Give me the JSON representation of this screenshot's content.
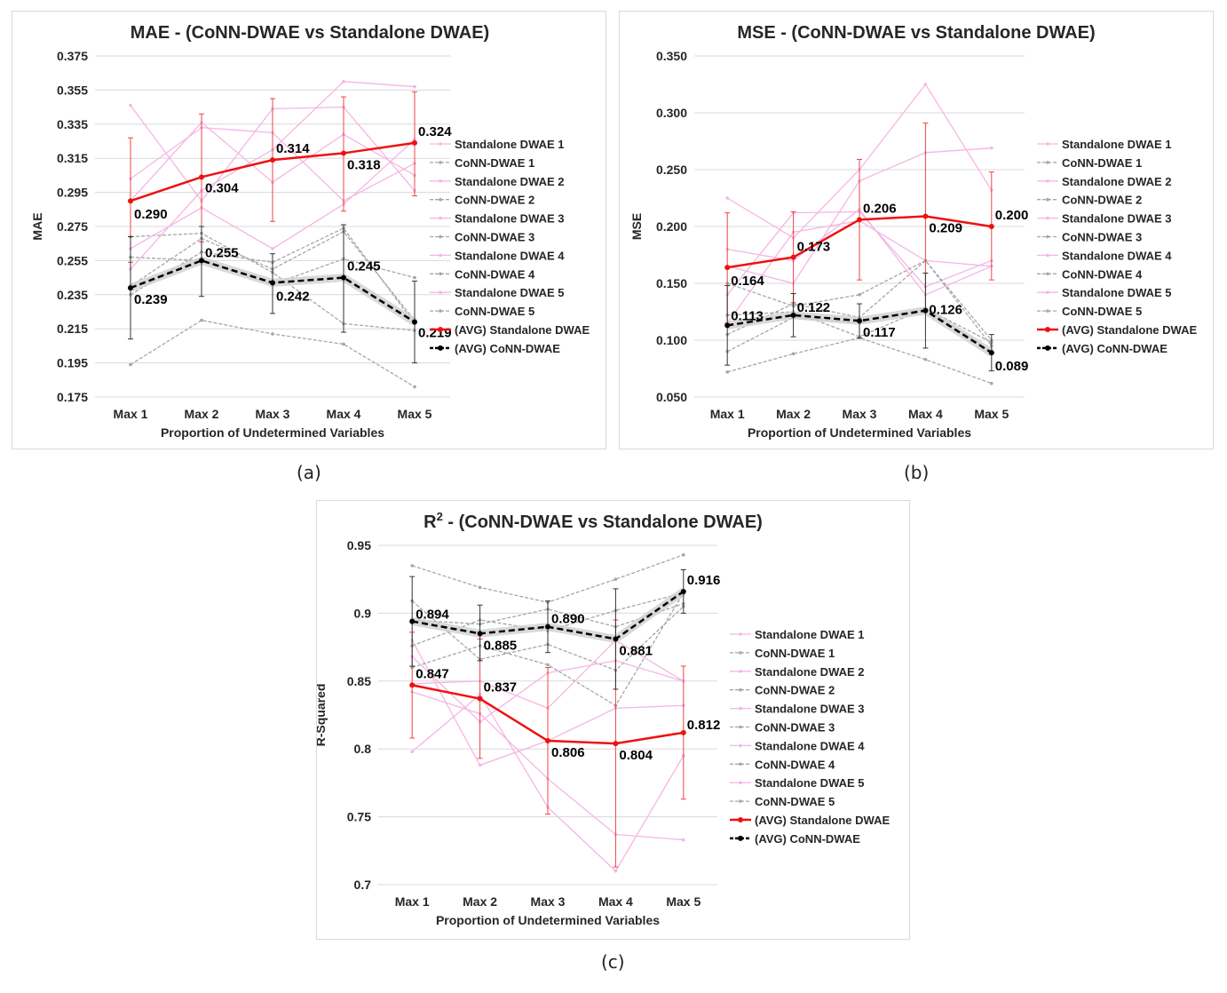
{
  "chart_data": [
    {
      "type": "line",
      "caption": "(a)",
      "title": "MAE - (CoNN-DWAE vs Standalone DWAE)",
      "xlabel": "Proportion of Undetermined Variables",
      "ylabel": "MAE",
      "categories": [
        "Max 1",
        "Max 2",
        "Max 3",
        "Max 4",
        "Max 5"
      ],
      "ylim": [
        0.175,
        0.375
      ],
      "yticks": [
        0.175,
        0.195,
        0.215,
        0.235,
        0.255,
        0.275,
        0.295,
        0.315,
        0.335,
        0.355,
        0.375
      ],
      "ytick_labels": [
        "0.175",
        "0.195",
        "0.215",
        "0.235",
        "0.255",
        "0.275",
        "0.295",
        "0.315",
        "0.335",
        "0.355",
        "0.375"
      ],
      "series": [
        {
          "name": "Standalone DWAE 1",
          "kind": "standalone",
          "values": [
            0.346,
            0.29,
            0.344,
            0.345,
            0.296
          ]
        },
        {
          "name": "CoNN-DWAE 1",
          "kind": "conn",
          "values": [
            0.24,
            0.268,
            0.25,
            0.272,
            0.22
          ]
        },
        {
          "name": "Standalone DWAE 2",
          "kind": "standalone",
          "values": [
            0.303,
            0.333,
            0.33,
            0.29,
            0.312
          ]
        },
        {
          "name": "CoNN-DWAE 2",
          "kind": "conn",
          "values": [
            0.257,
            0.255,
            0.241,
            0.256,
            0.245
          ]
        },
        {
          "name": "Standalone DWAE 3",
          "kind": "standalone",
          "values": [
            0.29,
            0.336,
            0.301,
            0.329,
            0.305
          ]
        },
        {
          "name": "CoNN-DWAE 3",
          "kind": "conn",
          "values": [
            0.194,
            0.22,
            0.212,
            0.206,
            0.181
          ]
        },
        {
          "name": "Standalone DWAE 4",
          "kind": "standalone",
          "values": [
            0.25,
            0.296,
            0.32,
            0.36,
            0.357
          ]
        },
        {
          "name": "CoNN-DWAE 4",
          "kind": "conn",
          "values": [
            0.269,
            0.271,
            0.248,
            0.218,
            0.214
          ]
        },
        {
          "name": "Standalone DWAE 5",
          "kind": "standalone",
          "values": [
            0.262,
            0.286,
            0.262,
            0.288,
            0.326
          ]
        },
        {
          "name": "CoNN-DWAE 5",
          "kind": "conn",
          "values": [
            0.235,
            0.26,
            0.254,
            0.274,
            0.218
          ]
        },
        {
          "name": "(AVG) Standalone DWAE",
          "kind": "avg-standalone",
          "values": [
            0.29,
            0.304,
            0.314,
            0.318,
            0.324
          ],
          "labels": [
            "0.290",
            "0.304",
            "0.314",
            "0.318",
            "0.324"
          ],
          "err_low": [
            0.254,
            0.266,
            0.278,
            0.284,
            0.293
          ],
          "err_high": [
            0.327,
            0.341,
            0.35,
            0.351,
            0.354
          ]
        },
        {
          "name": "(AVG) CoNN-DWAE",
          "kind": "avg-conn",
          "values": [
            0.239,
            0.255,
            0.242,
            0.245,
            0.219
          ],
          "labels": [
            "0.239",
            "0.255",
            "0.242",
            "0.245",
            "0.219"
          ],
          "err_low": [
            0.209,
            0.234,
            0.224,
            0.213,
            0.195
          ],
          "err_high": [
            0.269,
            0.275,
            0.259,
            0.276,
            0.243
          ]
        }
      ]
    },
    {
      "type": "line",
      "caption": "(b)",
      "title": "MSE - (CoNN-DWAE vs Standalone DWAE)",
      "xlabel": "Proportion of Undetermined Variables",
      "ylabel": "MSE",
      "categories": [
        "Max 1",
        "Max 2",
        "Max 3",
        "Max 4",
        "Max 5"
      ],
      "ylim": [
        0.05,
        0.35
      ],
      "yticks": [
        0.05,
        0.1,
        0.15,
        0.2,
        0.25,
        0.3,
        0.35
      ],
      "ytick_labels": [
        "0.050",
        "0.100",
        "0.150",
        "0.200",
        "0.250",
        "0.300",
        "0.350"
      ],
      "series": [
        {
          "name": "Standalone DWAE 1",
          "kind": "standalone",
          "values": [
            0.225,
            0.19,
            0.25,
            0.325,
            0.232
          ]
        },
        {
          "name": "CoNN-DWAE 1",
          "kind": "conn",
          "values": [
            0.105,
            0.132,
            0.12,
            0.17,
            0.095
          ]
        },
        {
          "name": "Standalone DWAE 2",
          "kind": "standalone",
          "values": [
            0.14,
            0.212,
            0.213,
            0.147,
            0.17
          ]
        },
        {
          "name": "CoNN-DWAE 2",
          "kind": "conn",
          "values": [
            0.122,
            0.125,
            0.103,
            0.128,
            0.09
          ]
        },
        {
          "name": "Standalone DWAE 3",
          "kind": "standalone",
          "values": [
            0.165,
            0.15,
            0.24,
            0.265,
            0.269
          ]
        },
        {
          "name": "CoNN-DWAE 3",
          "kind": "conn",
          "values": [
            0.072,
            0.088,
            0.102,
            0.083,
            0.062
          ]
        },
        {
          "name": "Standalone DWAE 4",
          "kind": "standalone",
          "values": [
            0.115,
            0.195,
            0.205,
            0.17,
            0.165
          ]
        },
        {
          "name": "CoNN-DWAE 4",
          "kind": "conn",
          "values": [
            0.15,
            0.13,
            0.14,
            0.17,
            0.1
          ]
        },
        {
          "name": "Standalone DWAE 5",
          "kind": "standalone",
          "values": [
            0.18,
            0.17,
            0.215,
            0.14,
            0.165
          ]
        },
        {
          "name": "CoNN-DWAE 5",
          "kind": "conn",
          "values": [
            0.09,
            0.12,
            0.115,
            0.128,
            0.098
          ]
        },
        {
          "name": "(AVG) Standalone DWAE",
          "kind": "avg-standalone",
          "values": [
            0.164,
            0.173,
            0.206,
            0.209,
            0.2
          ],
          "labels": [
            "0.164",
            "0.173",
            "0.206",
            "0.209",
            "0.200"
          ],
          "err_low": [
            0.115,
            0.133,
            0.153,
            0.127,
            0.153
          ],
          "err_high": [
            0.212,
            0.213,
            0.259,
            0.291,
            0.248
          ]
        },
        {
          "name": "(AVG) CoNN-DWAE",
          "kind": "avg-conn",
          "values": [
            0.113,
            0.122,
            0.117,
            0.126,
            0.089
          ],
          "labels": [
            "0.113",
            "0.122",
            "0.117",
            "0.126",
            "0.089"
          ],
          "err_low": [
            0.078,
            0.103,
            0.102,
            0.093,
            0.073
          ],
          "err_high": [
            0.148,
            0.141,
            0.132,
            0.159,
            0.105
          ]
        }
      ]
    },
    {
      "type": "line",
      "caption": "(c)",
      "title_main": "R",
      "title_sup": "2",
      "title_rest": " - (CoNN-DWAE vs Standalone DWAE)",
      "xlabel": "Proportion of Undetermined Variables",
      "ylabel": "R-Squared",
      "categories": [
        "Max 1",
        "Max 2",
        "Max 3",
        "Max 4",
        "Max 5"
      ],
      "ylim": [
        0.7,
        0.95
      ],
      "yticks": [
        0.7,
        0.75,
        0.8,
        0.85,
        0.9,
        0.95
      ],
      "ytick_labels": [
        "0.7",
        "0.75",
        "0.8",
        "0.85",
        "0.9",
        "0.95"
      ],
      "series": [
        {
          "name": "Standalone DWAE 1",
          "kind": "standalone",
          "values": [
            0.798,
            0.84,
            0.757,
            0.71,
            0.795
          ]
        },
        {
          "name": "CoNN-DWAE 1",
          "kind": "conn",
          "values": [
            0.935,
            0.919,
            0.908,
            0.925,
            0.943
          ]
        },
        {
          "name": "Standalone DWAE 2",
          "kind": "standalone",
          "values": [
            0.88,
            0.788,
            0.806,
            0.83,
            0.832
          ]
        },
        {
          "name": "CoNN-DWAE 2",
          "kind": "conn",
          "values": [
            0.86,
            0.876,
            0.862,
            0.832,
            0.915
          ]
        },
        {
          "name": "Standalone DWAE 3",
          "kind": "standalone",
          "values": [
            0.842,
            0.826,
            0.778,
            0.737,
            0.733
          ]
        },
        {
          "name": "CoNN-DWAE 3",
          "kind": "conn",
          "values": [
            0.909,
            0.866,
            0.877,
            0.858,
            0.905
          ]
        },
        {
          "name": "Standalone DWAE 4",
          "kind": "standalone",
          "values": [
            0.868,
            0.82,
            0.856,
            0.865,
            0.85
          ]
        },
        {
          "name": "CoNN-DWAE 4",
          "kind": "conn",
          "values": [
            0.895,
            0.892,
            0.903,
            0.89,
            0.907
          ]
        },
        {
          "name": "Standalone DWAE 5",
          "kind": "standalone",
          "values": [
            0.848,
            0.85,
            0.83,
            0.88,
            0.85
          ]
        },
        {
          "name": "CoNN-DWAE 5",
          "kind": "conn",
          "values": [
            0.876,
            0.895,
            0.887,
            0.902,
            0.915
          ]
        },
        {
          "name": "(AVG) Standalone DWAE",
          "kind": "avg-standalone",
          "values": [
            0.847,
            0.837,
            0.806,
            0.804,
            0.812
          ],
          "labels": [
            "0.847",
            "0.837",
            "0.806",
            "0.804",
            "0.812"
          ],
          "err_low": [
            0.808,
            0.793,
            0.752,
            0.713,
            0.763
          ],
          "err_high": [
            0.886,
            0.881,
            0.86,
            0.895,
            0.861
          ]
        },
        {
          "name": "(AVG) CoNN-DWAE",
          "kind": "avg-conn",
          "values": [
            0.894,
            0.885,
            0.89,
            0.881,
            0.916
          ],
          "labels": [
            "0.894",
            "0.885",
            "0.890",
            "0.881",
            "0.916"
          ],
          "err_low": [
            0.861,
            0.865,
            0.871,
            0.844,
            0.9
          ],
          "err_high": [
            0.927,
            0.906,
            0.909,
            0.918,
            0.932
          ]
        }
      ]
    }
  ],
  "colors": {
    "standalone": "#f4b6e4",
    "conn": "#a6a6a6",
    "avg_standalone": "#ee1111",
    "avg_conn": "#000000",
    "grid": "#d9d9d9",
    "text": "#000000"
  }
}
